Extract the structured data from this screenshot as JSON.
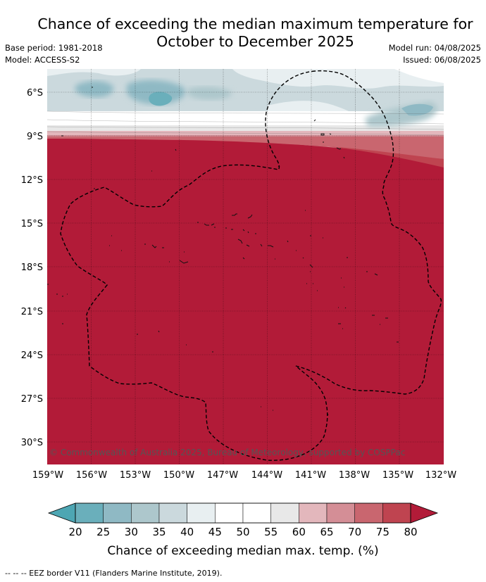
{
  "header": {
    "title_line1": "Chance of exceeding the median maximum temperature for",
    "title_line2": "October to December 2025",
    "base_period": "Base period: 1981-2018",
    "model": "Model: ACCESS-S2",
    "model_run": "Model run: 04/08/2025",
    "issued": "Issued: 06/08/2025"
  },
  "map": {
    "lon_labels": [
      "159°W",
      "156°W",
      "153°W",
      "150°W",
      "147°W",
      "144°W",
      "141°W",
      "138°W",
      "135°W",
      "132°W"
    ],
    "lat_labels": [
      "6°S",
      "9°S",
      "12°S",
      "15°S",
      "18°S",
      "21°S",
      "24°S",
      "27°S",
      "30°S"
    ],
    "copyright": "© Commonwealth of Australia 2025, Bureau of Meteorology, supported by COSPPac",
    "colors": {
      "high": "#b21b38",
      "ocean_border": "#000000"
    }
  },
  "colorbar": {
    "ticks": [
      "20",
      "25",
      "30",
      "35",
      "40",
      "45",
      "50",
      "55",
      "60",
      "65",
      "70",
      "75",
      "80"
    ],
    "label": "Chance of exceeding median max. temp. (%)",
    "colors": [
      "#6aafbb",
      "#8fb9c4",
      "#adc7cc",
      "#cbd9dd",
      "#e8eff1",
      "#ffffff",
      "#ffffff",
      "#e8e8e8",
      "#e3b7bc",
      "#d48e96",
      "#c9666f",
      "#bf4450"
    ],
    "low_color": "#4da6b3",
    "high_color": "#b21b38"
  },
  "footer": {
    "legend_line": "--  --  -- EEZ border V11 (Flanders Marine Institute, 2019)."
  }
}
